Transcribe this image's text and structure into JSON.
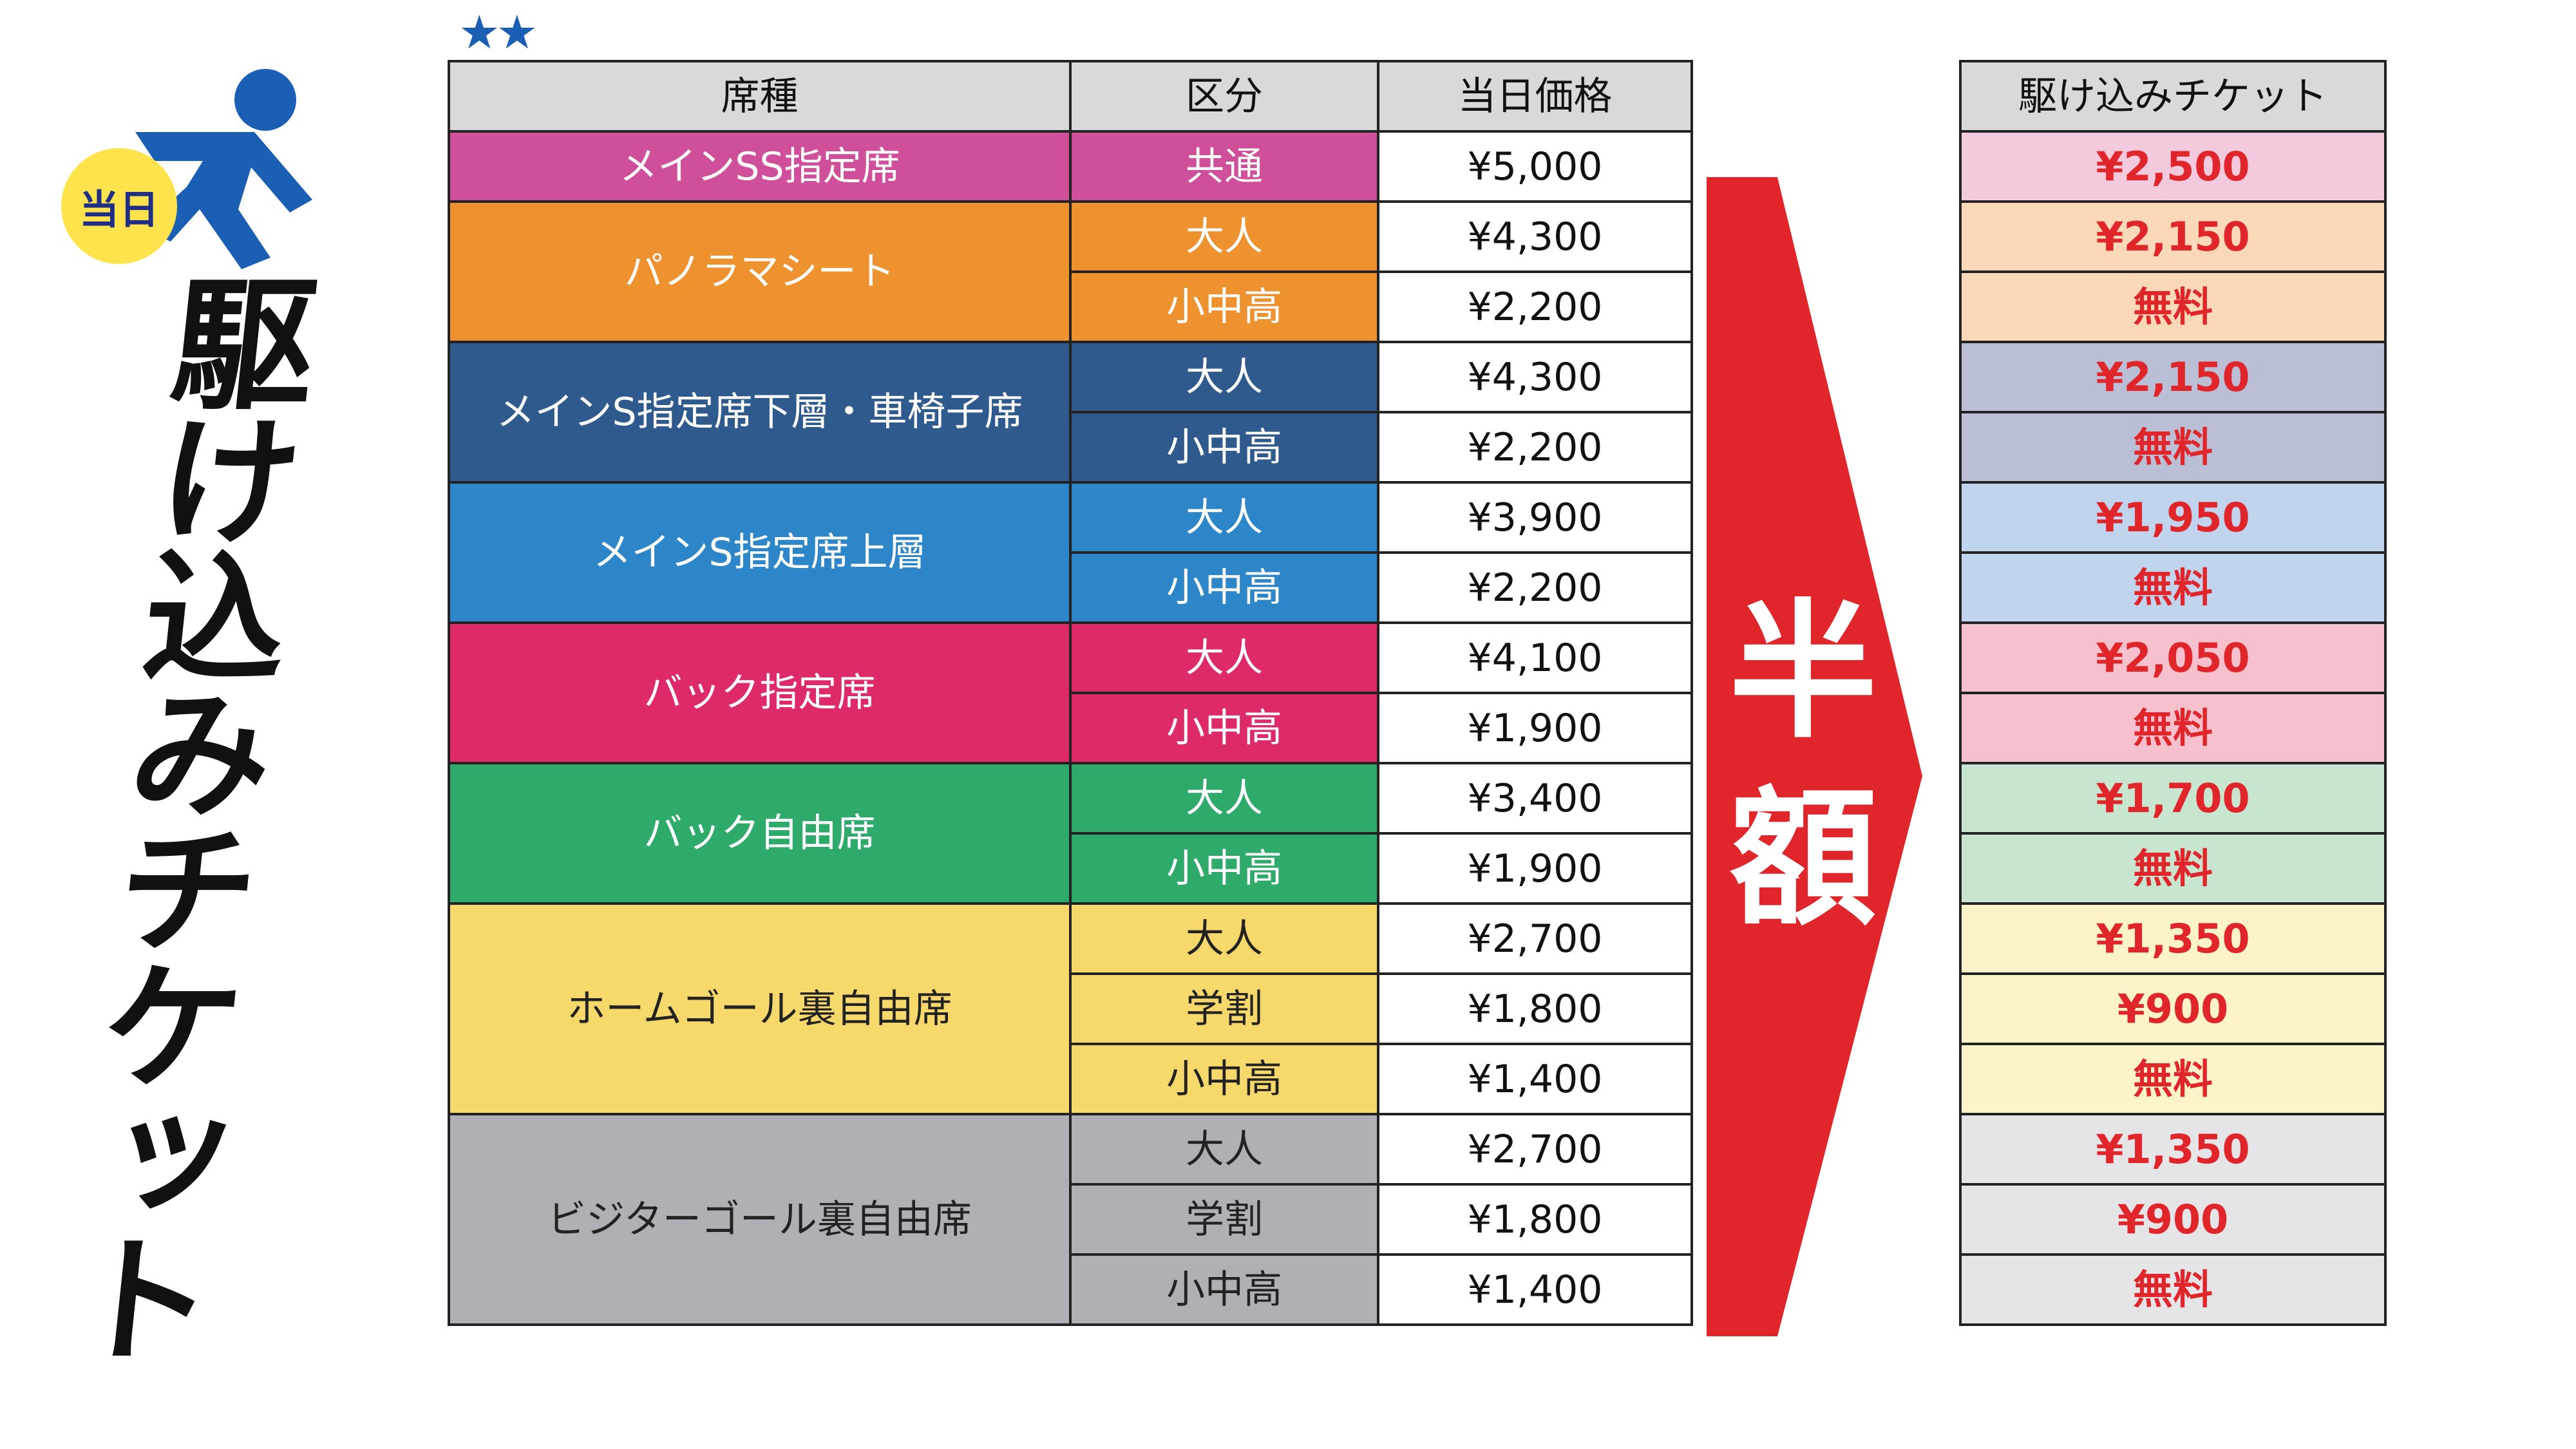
{
  "title": {
    "badge": "当日",
    "vertical": "駆け込みチケット"
  },
  "stars": "★★",
  "table": {
    "headers": [
      "席種",
      "区分",
      "当日価格"
    ],
    "groups": [
      {
        "seat": "メインSS指定席",
        "color": "#cf4f9a",
        "rows": [
          {
            "category": "共通",
            "price": "¥5,000"
          }
        ]
      },
      {
        "seat": "パノラマシート",
        "color": "#ee9230",
        "rows": [
          {
            "category": "大人",
            "price": "¥4,300"
          },
          {
            "category": "小中高",
            "price": "¥2,200"
          }
        ]
      },
      {
        "seat": "メインS指定席下層・車椅子席",
        "color": "#2e5a8e",
        "rows": [
          {
            "category": "大人",
            "price": "¥4,300"
          },
          {
            "category": "小中高",
            "price": "¥2,200"
          }
        ]
      },
      {
        "seat": "メインS指定席上層",
        "color": "#2c86c8",
        "rows": [
          {
            "category": "大人",
            "price": "¥3,900"
          },
          {
            "category": "小中高",
            "price": "¥2,200"
          }
        ]
      },
      {
        "seat": "バック指定席",
        "color": "#de2a68",
        "rows": [
          {
            "category": "大人",
            "price": "¥4,100"
          },
          {
            "category": "小中高",
            "price": "¥1,900"
          }
        ]
      },
      {
        "seat": "バック自由席",
        "color": "#2eaa6a",
        "rows": [
          {
            "category": "大人",
            "price": "¥3,400"
          },
          {
            "category": "小中高",
            "price": "¥1,900"
          }
        ]
      },
      {
        "seat": "ホームゴール裏自由席",
        "color": "#f7d86b",
        "dark": true,
        "rows": [
          {
            "category": "大人",
            "price": "¥2,700"
          },
          {
            "category": "学割",
            "price": "¥1,800"
          },
          {
            "category": "小中高",
            "price": "¥1,400"
          }
        ]
      },
      {
        "seat": "ビジターゴール裏自由席",
        "color": "#b0afb5",
        "dark": true,
        "rows": [
          {
            "category": "大人",
            "price": "¥2,700"
          },
          {
            "category": "学割",
            "price": "¥1,800"
          },
          {
            "category": "小中高",
            "price": "¥1,400"
          }
        ]
      }
    ]
  },
  "arrow": {
    "text": "半額",
    "color": "#e0262b"
  },
  "right_table": {
    "header": "駆け込みチケット",
    "rows": [
      {
        "value": "¥2,500",
        "bg": "#f3c9de"
      },
      {
        "value": "¥2,150",
        "bg": "#fbd9b8"
      },
      {
        "value": "無料",
        "bg": "#fbd9b8"
      },
      {
        "value": "¥2,150",
        "bg": "#babfd6"
      },
      {
        "value": "無料",
        "bg": "#babfd6"
      },
      {
        "value": "¥1,950",
        "bg": "#c0d4ee"
      },
      {
        "value": "無料",
        "bg": "#c0d4ee"
      },
      {
        "value": "¥2,050",
        "bg": "#f6c1cd"
      },
      {
        "value": "無料",
        "bg": "#f6c1cd"
      },
      {
        "value": "¥1,700",
        "bg": "#c7e5cf"
      },
      {
        "value": "無料",
        "bg": "#c7e5cf"
      },
      {
        "value": "¥1,350",
        "bg": "#fdf3c9"
      },
      {
        "value": "¥900",
        "bg": "#fdf3c9"
      },
      {
        "value": "無料",
        "bg": "#fdf3c9"
      },
      {
        "value": "¥1,350",
        "bg": "#e5e5e8"
      },
      {
        "value": "¥900",
        "bg": "#e5e5e8"
      },
      {
        "value": "無料",
        "bg": "#e5e5e8"
      }
    ]
  }
}
